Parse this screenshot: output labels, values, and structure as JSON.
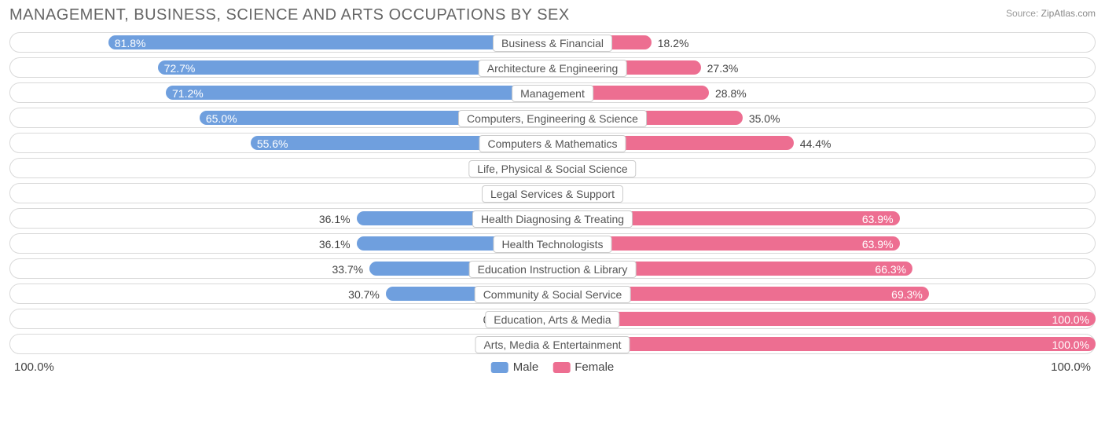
{
  "title": "MANAGEMENT, BUSINESS, SCIENCE AND ARTS OCCUPATIONS BY SEX",
  "source_label": "Source:",
  "source_value": "ZipAtlas.com",
  "chart": {
    "type": "diverging-bar",
    "male_color": "#6f9fde",
    "female_color": "#ed6e91",
    "label_inside_color": "#ffffff",
    "label_outside_color": "#444444",
    "track_border_color": "#d9d9d9",
    "background_color": "#ffffff",
    "min_bar_pct": 7,
    "axis_left": "100.0%",
    "axis_right": "100.0%",
    "legend": [
      {
        "label": "Male",
        "color": "#6f9fde"
      },
      {
        "label": "Female",
        "color": "#ed6e91"
      }
    ],
    "rows": [
      {
        "category": "Business & Financial",
        "male": 81.8,
        "female": 18.2
      },
      {
        "category": "Architecture & Engineering",
        "male": 72.7,
        "female": 27.3
      },
      {
        "category": "Management",
        "male": 71.2,
        "female": 28.8
      },
      {
        "category": "Computers, Engineering & Science",
        "male": 65.0,
        "female": 35.0
      },
      {
        "category": "Computers & Mathematics",
        "male": 55.6,
        "female": 44.4
      },
      {
        "category": "Life, Physical & Social Science",
        "male": 0.0,
        "female": 0.0
      },
      {
        "category": "Legal Services & Support",
        "male": 0.0,
        "female": 0.0
      },
      {
        "category": "Health Diagnosing & Treating",
        "male": 36.1,
        "female": 63.9
      },
      {
        "category": "Health Technologists",
        "male": 36.1,
        "female": 63.9
      },
      {
        "category": "Education Instruction & Library",
        "male": 33.7,
        "female": 66.3
      },
      {
        "category": "Community & Social Service",
        "male": 30.7,
        "female": 69.3
      },
      {
        "category": "Education, Arts & Media",
        "male": 0.0,
        "female": 100.0
      },
      {
        "category": "Arts, Media & Entertainment",
        "male": 0.0,
        "female": 100.0
      }
    ]
  }
}
